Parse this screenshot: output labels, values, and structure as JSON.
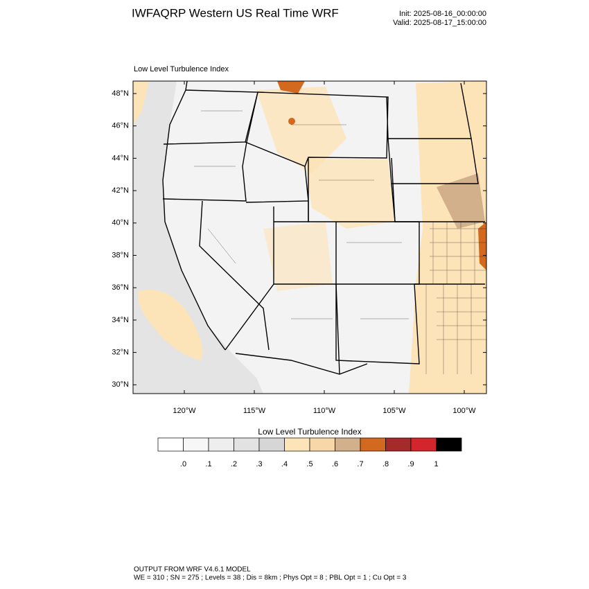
{
  "header": {
    "title": "IWFAQRP Western US Real Time WRF",
    "init": "Init: 2025-08-16_00:00:00",
    "valid": "Valid: 2025-08-17_15:00:00"
  },
  "map": {
    "title": "Low Level Turbulence Index",
    "lat_labels": [
      "48°N",
      "46°N",
      "44°N",
      "42°N",
      "40°N",
      "38°N",
      "36°N",
      "34°N",
      "32°N",
      "30°N"
    ],
    "lon_labels": [
      "120°W",
      "115°W",
      "110°W",
      "105°W",
      "100°W"
    ]
  },
  "colorbar": {
    "title": "Low Level Turbulence Index",
    "colors": [
      "#ffffff",
      "#f7f7f7",
      "#eeeeee",
      "#e2e2e2",
      "#d6d6d6",
      "#fde4b8",
      "#f7d6a8",
      "#d2b08c",
      "#d2691e",
      "#a52a2a",
      "#d3262c",
      "#000000"
    ],
    "labels": [
      ".0",
      ".1",
      ".2",
      ".3",
      ".4",
      ".5",
      ".6",
      ".7",
      ".8",
      ".9",
      "1"
    ]
  },
  "footer": {
    "line1": "OUTPUT FROM WRF V4.6.1 MODEL",
    "line2": "WE = 310 ; SN = 275 ; Levels = 38 ; Dis = 8km ; Phys Opt = 8 ; PBL Opt = 1 ; Cu Opt = 3"
  }
}
